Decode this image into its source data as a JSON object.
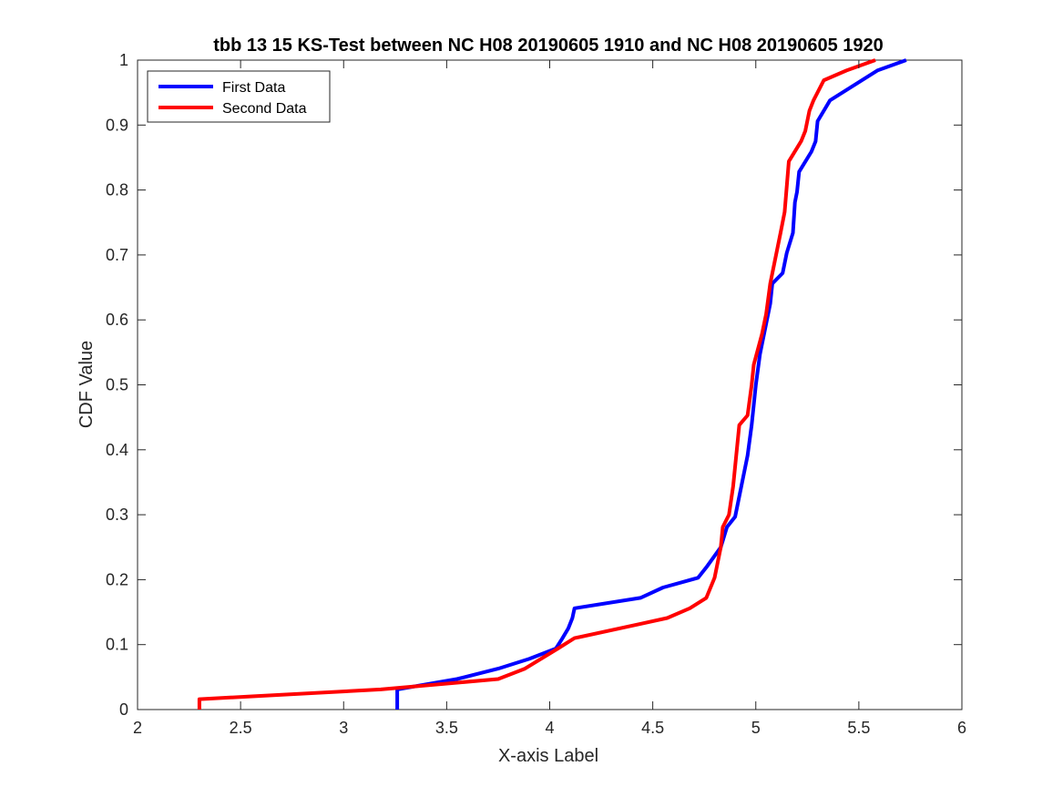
{
  "chart_data": {
    "type": "line",
    "title": "tbb 13 15 KS-Test between NC H08 20190605 1910 and NC H08 20190605 1920",
    "xlabel": "X-axis Label",
    "ylabel": "CDF Value",
    "xlim": [
      2,
      6
    ],
    "ylim": [
      0,
      1
    ],
    "xticks": [
      "2",
      "2.5",
      "3",
      "3.5",
      "4",
      "4.5",
      "5",
      "5.5",
      "6"
    ],
    "yticks": [
      "0",
      "0.1",
      "0.2",
      "0.3",
      "0.4",
      "0.5",
      "0.6",
      "0.7",
      "0.8",
      "0.9",
      "1"
    ],
    "grid": false,
    "box": true,
    "legend_position": "top-left",
    "series": [
      {
        "name": "First Data",
        "color": "#0000ff",
        "points": [
          [
            3.26,
            0
          ],
          [
            3.26,
            0.031
          ],
          [
            3.55,
            0.047
          ],
          [
            3.75,
            0.063
          ],
          [
            3.9,
            0.078
          ],
          [
            4.03,
            0.094
          ],
          [
            4.06,
            0.109
          ],
          [
            4.09,
            0.125
          ],
          [
            4.11,
            0.141
          ],
          [
            4.12,
            0.156
          ],
          [
            4.44,
            0.172
          ],
          [
            4.55,
            0.188
          ],
          [
            4.72,
            0.203
          ],
          [
            4.76,
            0.219
          ],
          [
            4.83,
            0.25
          ],
          [
            4.86,
            0.281
          ],
          [
            4.9,
            0.297
          ],
          [
            4.93,
            0.344
          ],
          [
            4.96,
            0.391
          ],
          [
            4.98,
            0.438
          ],
          [
            5.0,
            0.5
          ],
          [
            5.02,
            0.547
          ],
          [
            5.05,
            0.594
          ],
          [
            5.07,
            0.625
          ],
          [
            5.08,
            0.656
          ],
          [
            5.13,
            0.672
          ],
          [
            5.15,
            0.703
          ],
          [
            5.18,
            0.734
          ],
          [
            5.19,
            0.781
          ],
          [
            5.2,
            0.797
          ],
          [
            5.21,
            0.828
          ],
          [
            5.27,
            0.859
          ],
          [
            5.29,
            0.875
          ],
          [
            5.3,
            0.906
          ],
          [
            5.33,
            0.922
          ],
          [
            5.36,
            0.938
          ],
          [
            5.59,
            0.984
          ],
          [
            5.73,
            1.0
          ]
        ]
      },
      {
        "name": "Second Data",
        "color": "#ff0000",
        "points": [
          [
            2.3,
            0
          ],
          [
            2.3,
            0.016
          ],
          [
            3.18,
            0.031
          ],
          [
            3.75,
            0.047
          ],
          [
            3.88,
            0.063
          ],
          [
            4.04,
            0.094
          ],
          [
            4.12,
            0.11
          ],
          [
            4.44,
            0.132
          ],
          [
            4.57,
            0.141
          ],
          [
            4.68,
            0.156
          ],
          [
            4.76,
            0.172
          ],
          [
            4.8,
            0.203
          ],
          [
            4.83,
            0.25
          ],
          [
            4.84,
            0.281
          ],
          [
            4.87,
            0.3
          ],
          [
            4.89,
            0.344
          ],
          [
            4.92,
            0.438
          ],
          [
            4.96,
            0.453
          ],
          [
            4.98,
            0.5
          ],
          [
            4.99,
            0.531
          ],
          [
            5.03,
            0.578
          ],
          [
            5.05,
            0.609
          ],
          [
            5.07,
            0.656
          ],
          [
            5.1,
            0.703
          ],
          [
            5.12,
            0.734
          ],
          [
            5.14,
            0.766
          ],
          [
            5.16,
            0.844
          ],
          [
            5.22,
            0.875
          ],
          [
            5.24,
            0.891
          ],
          [
            5.26,
            0.922
          ],
          [
            5.28,
            0.938
          ],
          [
            5.33,
            0.969
          ],
          [
            5.44,
            0.984
          ],
          [
            5.58,
            1.0
          ]
        ]
      }
    ]
  }
}
